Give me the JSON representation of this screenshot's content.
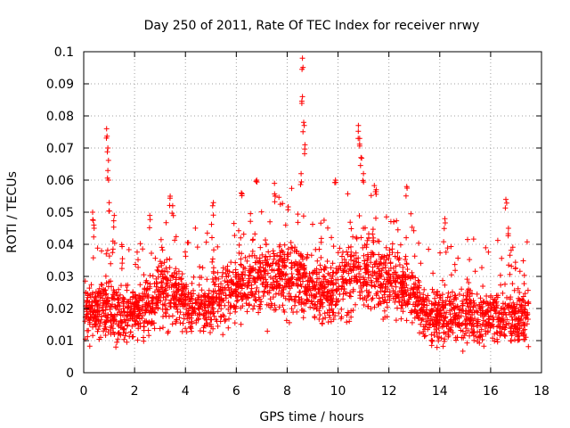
{
  "chart_data": {
    "type": "scatter",
    "title": "Day 250 of 2011, Rate Of TEC Index for receiver nrwy",
    "xlabel": "GPS time / hours",
    "ylabel": "ROTI / TECUs",
    "xlim": [
      0,
      18
    ],
    "ylim": [
      0,
      0.1
    ],
    "xticks": [
      "0",
      "2",
      "4",
      "6",
      "8",
      "10",
      "12",
      "14",
      "16",
      "18"
    ],
    "yticks": [
      "0",
      "0.01",
      "0.02",
      "0.03",
      "0.04",
      "0.05",
      "0.06",
      "0.07",
      "0.08",
      "0.09",
      "0.1"
    ],
    "grid": true,
    "marker": "+",
    "marker_color": "#ff0000",
    "series": [
      {
        "name": "ROTI",
        "x_range": [
          0.05,
          17.5
        ],
        "typical_range": [
          0.005,
          0.035
        ],
        "spikes": [
          {
            "x": 0.35,
            "y": 0.05
          },
          {
            "x": 0.4,
            "y": 0.046
          },
          {
            "x": 0.9,
            "y": 0.076
          },
          {
            "x": 0.95,
            "y": 0.07
          },
          {
            "x": 0.95,
            "y": 0.063
          },
          {
            "x": 1.0,
            "y": 0.053
          },
          {
            "x": 1.2,
            "y": 0.049
          },
          {
            "x": 1.15,
            "y": 0.041
          },
          {
            "x": 2.6,
            "y": 0.049
          },
          {
            "x": 3.4,
            "y": 0.055
          },
          {
            "x": 3.5,
            "y": 0.052
          },
          {
            "x": 5.1,
            "y": 0.053
          },
          {
            "x": 6.2,
            "y": 0.056
          },
          {
            "x": 6.8,
            "y": 0.06
          },
          {
            "x": 7.5,
            "y": 0.059
          },
          {
            "x": 8.6,
            "y": 0.098
          },
          {
            "x": 8.6,
            "y": 0.086
          },
          {
            "x": 8.65,
            "y": 0.078
          },
          {
            "x": 8.7,
            "y": 0.071
          },
          {
            "x": 8.55,
            "y": 0.062
          },
          {
            "x": 9.9,
            "y": 0.06
          },
          {
            "x": 10.8,
            "y": 0.077
          },
          {
            "x": 10.85,
            "y": 0.073
          },
          {
            "x": 10.9,
            "y": 0.067
          },
          {
            "x": 11.0,
            "y": 0.062
          },
          {
            "x": 11.5,
            "y": 0.057
          },
          {
            "x": 12.7,
            "y": 0.058
          },
          {
            "x": 14.2,
            "y": 0.048
          },
          {
            "x": 16.6,
            "y": 0.054
          },
          {
            "x": 16.7,
            "y": 0.045
          }
        ]
      }
    ]
  }
}
